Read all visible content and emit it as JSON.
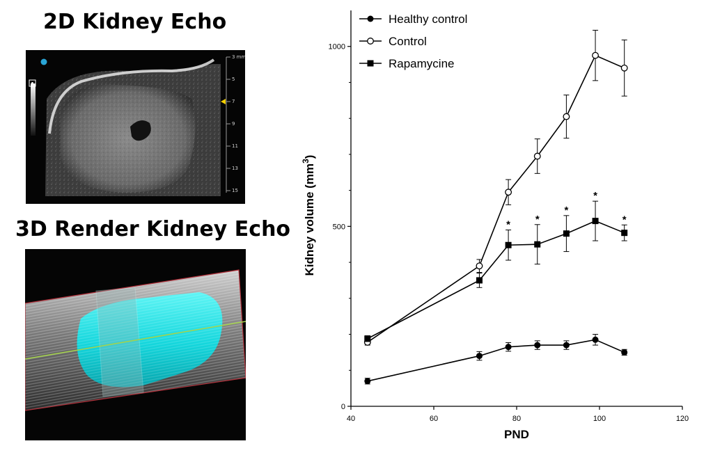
{
  "panels": {
    "echo2d_title": "2D Kidney Echo",
    "echo3d_title": "3D Render Kidney Echo",
    "depth_scale": [
      "3 mm",
      "5",
      "7",
      "9",
      "11",
      "13",
      "15"
    ]
  },
  "chart_data": {
    "type": "line",
    "xlabel": "PND",
    "ylabel": "Kidney volume (mm³)",
    "ylabel_base": "Kidney volume (mm",
    "ylabel_sup": "3",
    "ylabel_close": ")",
    "xlim": [
      40,
      120
    ],
    "ylim": [
      0,
      1100
    ],
    "xticks": [
      40,
      60,
      80,
      100,
      120
    ],
    "yticks": [
      0,
      500,
      1000
    ],
    "legend_position": "top-left",
    "grid": false,
    "series": [
      {
        "name": "Healthy control",
        "marker": "filled-circle",
        "x": [
          44,
          71,
          78,
          85,
          92,
          99,
          106
        ],
        "y": [
          70,
          140,
          165,
          170,
          170,
          185,
          150
        ],
        "err": [
          8,
          12,
          12,
          12,
          12,
          15,
          8
        ]
      },
      {
        "name": "Control",
        "marker": "open-circle",
        "x": [
          44,
          71,
          78,
          85,
          92,
          99,
          106
        ],
        "y": [
          178,
          390,
          595,
          695,
          805,
          975,
          940
        ],
        "err": [
          8,
          18,
          35,
          48,
          60,
          70,
          78
        ]
      },
      {
        "name": "Rapamycine",
        "marker": "filled-square",
        "x": [
          44,
          71,
          78,
          85,
          92,
          99,
          106
        ],
        "y": [
          188,
          350,
          448,
          450,
          480,
          515,
          482
        ],
        "err": [
          8,
          20,
          42,
          55,
          50,
          55,
          22
        ]
      }
    ],
    "annotations": [
      {
        "text": "*",
        "x": 78
      },
      {
        "text": "*",
        "x": 85
      },
      {
        "text": "*",
        "x": 92
      },
      {
        "text": "*",
        "x": 99
      },
      {
        "text": "*",
        "x": 106
      }
    ]
  }
}
